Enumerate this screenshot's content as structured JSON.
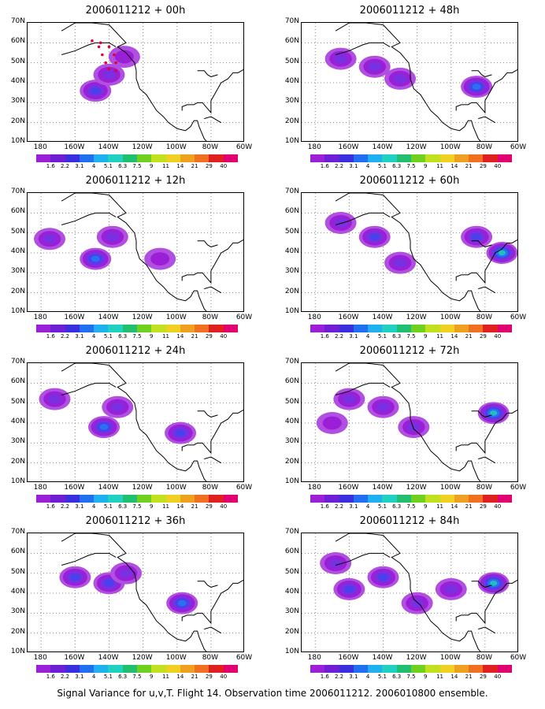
{
  "chart_data": {
    "type": "heatmap",
    "figure_caption": "Signal Variance for u,v,T. Flight 14. Observation time 2006011212. 2006010800 ensemble.",
    "lat_ticks": [
      "10N",
      "20N",
      "30N",
      "40N",
      "50N",
      "60N",
      "70N"
    ],
    "lon_ticks": [
      "180",
      "160W",
      "140W",
      "120W",
      "100W",
      "80W",
      "60W"
    ],
    "colorbar_labels": [
      "1.6",
      "2.2",
      "3.1",
      "4",
      "5.1",
      "6.3",
      "7.5",
      "9",
      "11",
      "14",
      "21",
      "29",
      "40"
    ],
    "colorbar_colors": [
      "#9b1fd6",
      "#6e1fd6",
      "#3a2fe0",
      "#1f6ff0",
      "#1fb0f0",
      "#20d0c0",
      "#20c070",
      "#70d020",
      "#c0e020",
      "#f0d020",
      "#f0a020",
      "#f07020",
      "#e02020",
      "#e00070"
    ],
    "panels": [
      {
        "title": "2006011212 + 00h",
        "blobs": [
          {
            "lon": -148,
            "lat": 36,
            "level": 3
          },
          {
            "lon": -140,
            "lat": 44,
            "level": 2
          },
          {
            "lon": -131,
            "lat": 53,
            "level": 1
          }
        ],
        "track": true
      },
      {
        "title": "2006011212 + 48h",
        "blobs": [
          {
            "lon": -165,
            "lat": 52,
            "level": 2
          },
          {
            "lon": -145,
            "lat": 48,
            "level": 2
          },
          {
            "lon": -130,
            "lat": 42,
            "level": 2
          },
          {
            "lon": -85,
            "lat": 38,
            "level": 4
          }
        ]
      },
      {
        "title": "2006011212 + 12h",
        "blobs": [
          {
            "lon": -175,
            "lat": 47,
            "level": 2
          },
          {
            "lon": -148,
            "lat": 37,
            "level": 4
          },
          {
            "lon": -138,
            "lat": 48,
            "level": 2
          },
          {
            "lon": -110,
            "lat": 37,
            "level": 1
          }
        ]
      },
      {
        "title": "2006011212 + 60h",
        "blobs": [
          {
            "lon": -165,
            "lat": 55,
            "level": 2
          },
          {
            "lon": -145,
            "lat": 48,
            "level": 3
          },
          {
            "lon": -130,
            "lat": 35,
            "level": 2
          },
          {
            "lon": -85,
            "lat": 48,
            "level": 3
          },
          {
            "lon": -70,
            "lat": 40,
            "level": 5
          }
        ]
      },
      {
        "title": "2006011212 + 24h",
        "blobs": [
          {
            "lon": -172,
            "lat": 52,
            "level": 2
          },
          {
            "lon": -143,
            "lat": 38,
            "level": 4
          },
          {
            "lon": -135,
            "lat": 48,
            "level": 2
          },
          {
            "lon": -98,
            "lat": 35,
            "level": 3
          }
        ]
      },
      {
        "title": "2006011212 + 72h",
        "blobs": [
          {
            "lon": -160,
            "lat": 52,
            "level": 2
          },
          {
            "lon": -140,
            "lat": 48,
            "level": 2
          },
          {
            "lon": -122,
            "lat": 38,
            "level": 2
          },
          {
            "lon": -170,
            "lat": 40,
            "level": 1
          },
          {
            "lon": -75,
            "lat": 45,
            "level": 5
          }
        ]
      },
      {
        "title": "2006011212 + 36h",
        "blobs": [
          {
            "lon": -160,
            "lat": 48,
            "level": 3
          },
          {
            "lon": -140,
            "lat": 45,
            "level": 3
          },
          {
            "lon": -130,
            "lat": 50,
            "level": 2
          },
          {
            "lon": -97,
            "lat": 35,
            "level": 4
          }
        ]
      },
      {
        "title": "2006011212 + 84h",
        "blobs": [
          {
            "lon": -168,
            "lat": 55,
            "level": 2
          },
          {
            "lon": -160,
            "lat": 42,
            "level": 3
          },
          {
            "lon": -140,
            "lat": 48,
            "level": 3
          },
          {
            "lon": -120,
            "lat": 35,
            "level": 2
          },
          {
            "lon": -100,
            "lat": 42,
            "level": 2
          },
          {
            "lon": -75,
            "lat": 45,
            "level": 5
          }
        ]
      }
    ]
  }
}
